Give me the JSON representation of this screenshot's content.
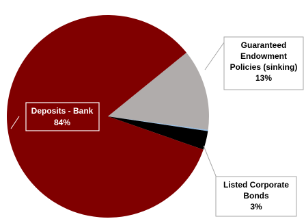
{
  "chart_data": {
    "type": "pie",
    "slices": [
      {
        "label": "Deposits - Bank",
        "value_label": "84%",
        "value": 84,
        "color": "#800000"
      },
      {
        "label": "Guaranteed Endowment Policies (sinking)",
        "value_label": "13%",
        "value": 13,
        "color": "#b0acab"
      },
      {
        "label": "",
        "value_label": "",
        "value": 0.2,
        "color": "#8fb8e0"
      },
      {
        "label": "Listed Corporate Bonds",
        "value_label": "3%",
        "value": 3,
        "color": "#000000"
      }
    ],
    "label_lines": {
      "deposits": [
        "Deposits - Bank",
        "84%"
      ],
      "endowment": [
        "Guaranteed",
        "Endowment",
        "Policies (sinking)",
        "13%"
      ],
      "bonds": [
        "Listed Corporate",
        "Bonds",
        "3%"
      ]
    }
  }
}
